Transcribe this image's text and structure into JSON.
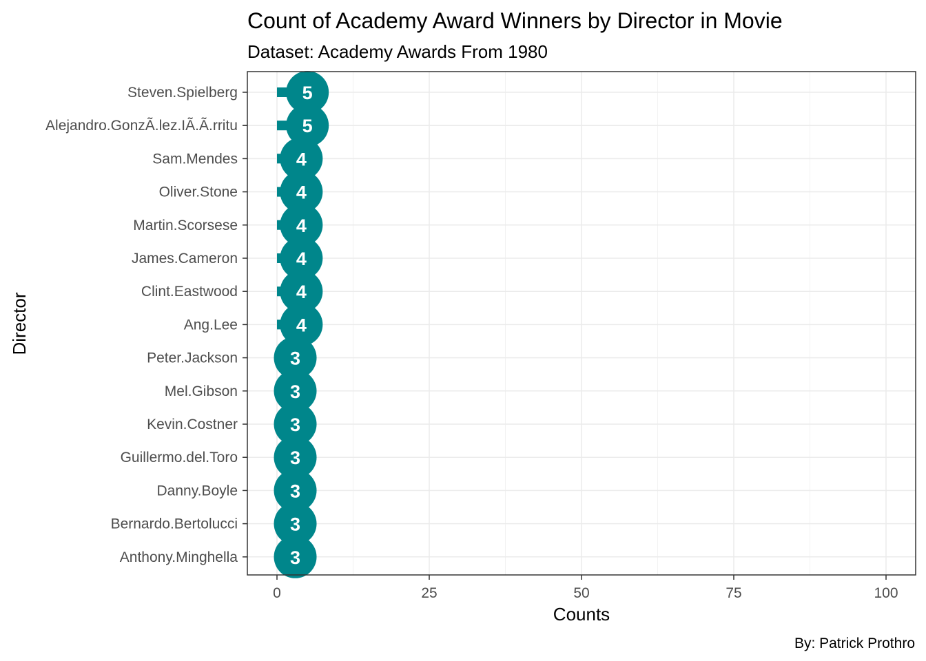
{
  "chart_data": {
    "type": "lollipop",
    "title": "Count of Academy Award Winners by Director in Movie",
    "subtitle": "Dataset: Academy Awards From 1980",
    "xlabel": "Counts",
    "ylabel": "Director",
    "caption": "By: Patrick Prothro",
    "xlim": [
      0,
      100
    ],
    "x_ticks": [
      0,
      25,
      50,
      75,
      100
    ],
    "grid": true,
    "color": "#00868B",
    "label_color": "#FFFFFF",
    "categories": [
      "Steven.Spielberg",
      "Alejandro.GonzÃ.lez.IÃ.Ã.rritu",
      "Sam.Mendes",
      "Oliver.Stone",
      "Martin.Scorsese",
      "James.Cameron",
      "Clint.Eastwood",
      "Ang.Lee",
      "Peter.Jackson",
      "Mel.Gibson",
      "Kevin.Costner",
      "Guillermo.del.Toro",
      "Danny.Boyle",
      "Bernardo.Bertolucci",
      "Anthony.Minghella"
    ],
    "values": [
      5,
      5,
      4,
      4,
      4,
      4,
      4,
      4,
      3,
      3,
      3,
      3,
      3,
      3,
      3
    ]
  }
}
